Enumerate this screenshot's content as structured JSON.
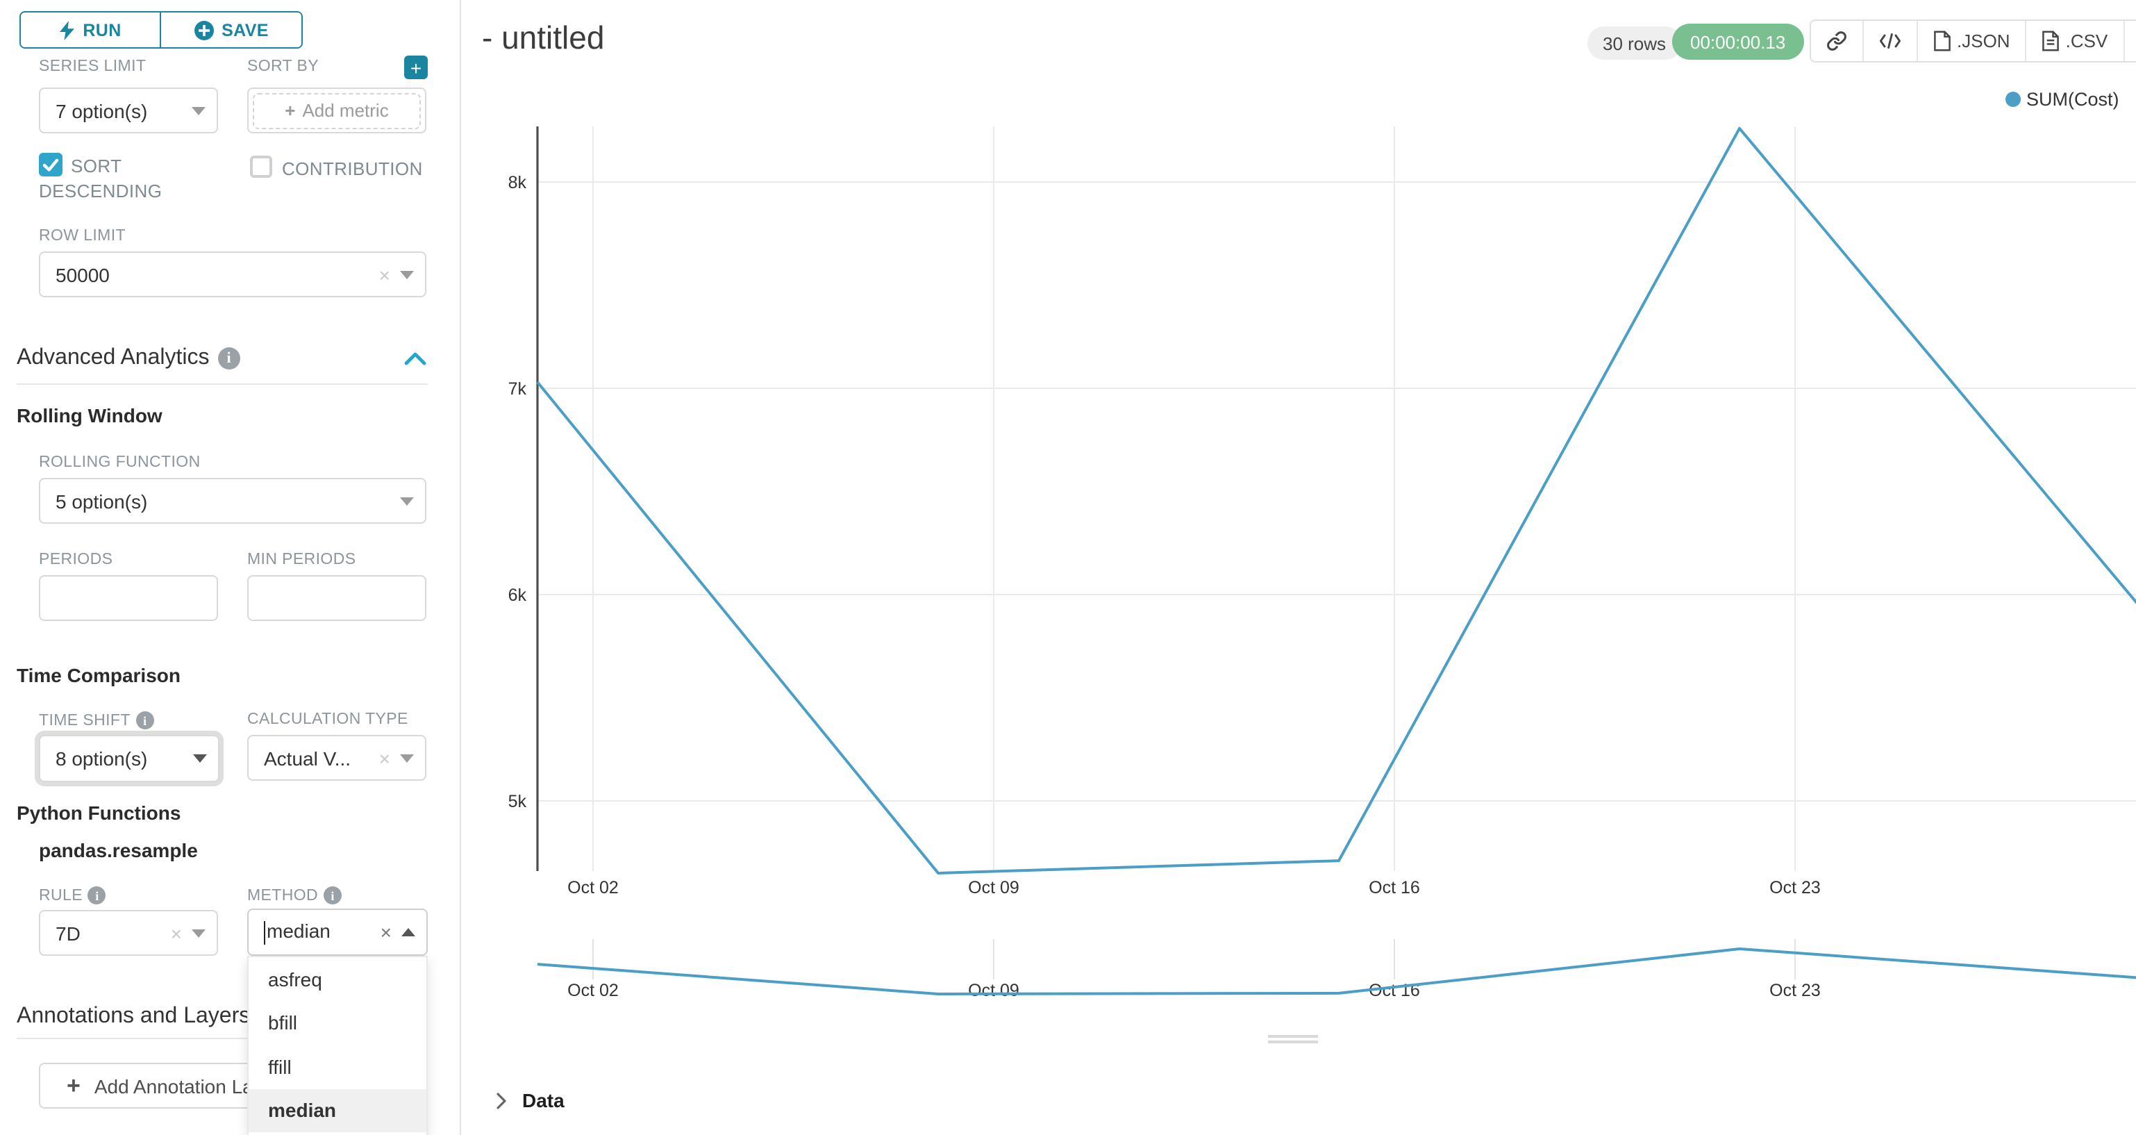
{
  "left_panel": {
    "run_label": "RUN",
    "save_label": "SAVE",
    "series_limit": {
      "label": "SERIES LIMIT",
      "value": "7 option(s)"
    },
    "sort_by": {
      "label": "SORT BY",
      "placeholder": "Add metric"
    },
    "sort_descending_label_line1": "SORT",
    "sort_descending_label_line2": "DESCENDING",
    "contribution_label": "CONTRIBUTION",
    "row_limit": {
      "label": "ROW LIMIT",
      "value": "50000"
    },
    "advanced_analytics_title": "Advanced Analytics",
    "rolling_window": {
      "title": "Rolling Window",
      "rolling_function": {
        "label": "ROLLING FUNCTION",
        "value": "5 option(s)"
      },
      "periods_label": "PERIODS",
      "min_periods_label": "MIN PERIODS"
    },
    "time_comparison": {
      "title": "Time Comparison",
      "time_shift": {
        "label": "TIME SHIFT",
        "value": "8 option(s)"
      },
      "calculation_type": {
        "label": "CALCULATION TYPE",
        "value": "Actual V..."
      }
    },
    "python_functions": {
      "title": "Python Functions",
      "subtitle": "pandas.resample",
      "rule": {
        "label": "RULE",
        "value": "7D"
      },
      "method": {
        "label": "METHOD",
        "value": "median",
        "options": [
          "asfreq",
          "bfill",
          "ffill",
          "median"
        ],
        "selected": "median"
      }
    },
    "annotations": {
      "title": "Annotations and Layers",
      "add_button": "Add Annotation Layer"
    }
  },
  "header": {
    "title": "- untitled",
    "rows_badge": "30 rows",
    "timer": "00:00:00.13",
    "export_json": ".JSON",
    "export_csv": ".CSV"
  },
  "chart_data": {
    "type": "line",
    "x": [
      "Oct 01",
      "Oct 08",
      "Oct 15",
      "Oct 22",
      "Oct 29"
    ],
    "series": [
      {
        "name": "SUM(Cost)",
        "color": "#4b9fc7",
        "values": [
          7030,
          4650,
          4710,
          8260,
          5940
        ]
      }
    ],
    "x_tick_labels": [
      "Oct 02",
      "Oct 09",
      "Oct 16",
      "Oct 23"
    ],
    "y_ticks": [
      8000,
      7000,
      6000,
      5000
    ],
    "y_tick_labels": [
      "8k",
      "7k",
      "6k",
      "5k"
    ],
    "ylim": [
      4660,
      8270
    ],
    "grid": true,
    "legend_position": "top-right",
    "has_minimap": true
  },
  "data_panel": {
    "label": "Data"
  },
  "colors": {
    "primary": "#1a85a0",
    "checkbox": "#2fa5c9",
    "line": "#4b9fc7",
    "timer_green": "#7abf90"
  }
}
